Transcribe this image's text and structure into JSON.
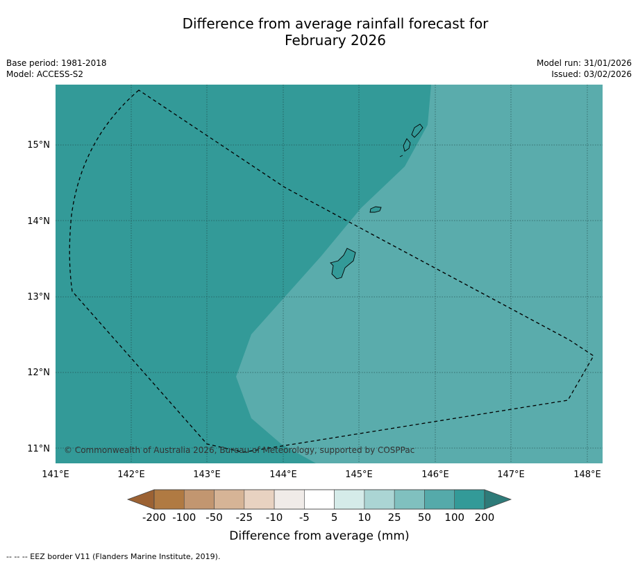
{
  "title": {
    "line1": "Difference from average rainfall forecast for",
    "line2": "February 2026"
  },
  "meta": {
    "base_period": "Base period: 1981-2018",
    "model": "Model: ACCESS-S2",
    "model_run": "Model run: 31/01/2026",
    "issued": "Issued: 03/02/2026"
  },
  "map": {
    "lat_labels": [
      "15°N",
      "14°N",
      "13°N",
      "12°N",
      "11°N"
    ],
    "lon_labels": [
      "141°E",
      "142°E",
      "143°E",
      "144°E",
      "145°E",
      "146°E",
      "147°E",
      "148°E"
    ],
    "copyright": "© Commonwealth of Australia 2026, Bureau of Meteorology, supported by COSPPac",
    "colors": {
      "category_100_200": "#339a98",
      "category_50_100": "#5aacac"
    },
    "regions": [
      {
        "name": "west",
        "category": "100 to 200 mm above average"
      },
      {
        "name": "east",
        "category": "50 to 100 mm above average"
      }
    ]
  },
  "colorbar": {
    "tick_labels": [
      "-200",
      "-100",
      "-50",
      "-25",
      "-10",
      "-5",
      "5",
      "10",
      "25",
      "50",
      "100",
      "200"
    ],
    "segment_colors": [
      "#b07a42",
      "#c29670",
      "#d6b496",
      "#e8d2c1",
      "#f0ebe8",
      "#ffffff",
      "#d5ebe9",
      "#abd5d4",
      "#80c0bf",
      "#55aaaa",
      "#339a98"
    ],
    "under_color": "#9c6233",
    "over_color": "#2e7b79",
    "title": "Difference from average (mm)"
  },
  "footnote": "--  --  -- EEZ border V11 (Flanders Marine Institute, 2019)."
}
